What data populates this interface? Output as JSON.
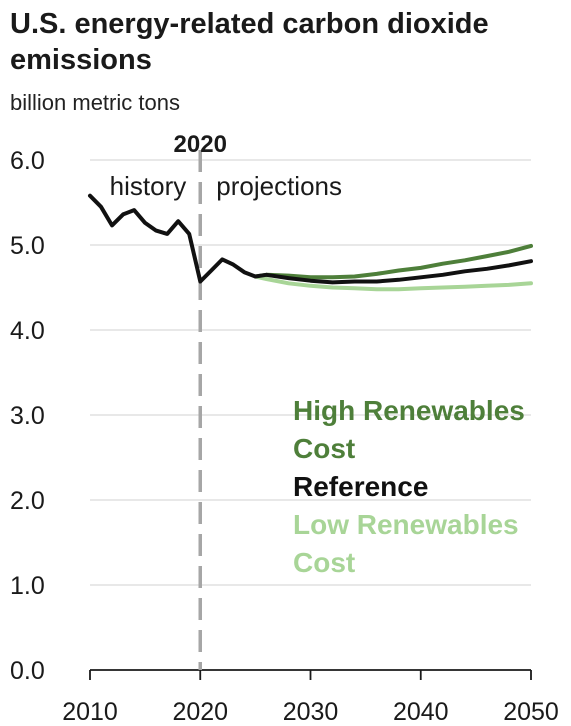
{
  "chart_data": {
    "type": "line",
    "title": "U.S. energy-related carbon dioxide emissions",
    "subtitle": "billion metric tons",
    "xlim": [
      2010,
      2050
    ],
    "ylim": [
      0,
      6
    ],
    "x_ticks": [
      "2010",
      "2020",
      "2030",
      "2040",
      "2050"
    ],
    "y_ticks": [
      "0.0",
      "1.0",
      "2.0",
      "3.0",
      "4.0",
      "5.0",
      "6.0"
    ],
    "grid": true,
    "vline": {
      "x": 2020,
      "label": "2020",
      "left_label": "history",
      "right_label": "projections"
    },
    "series": [
      {
        "name": "High Renewables Cost",
        "color": "#4e7f3a",
        "x": [
          2025,
          2026,
          2028,
          2030,
          2032,
          2034,
          2036,
          2038,
          2040,
          2042,
          2044,
          2046,
          2048,
          2050
        ],
        "y": [
          4.63,
          4.65,
          4.64,
          4.62,
          4.62,
          4.63,
          4.66,
          4.7,
          4.73,
          4.78,
          4.82,
          4.87,
          4.92,
          4.99
        ]
      },
      {
        "name": "Reference",
        "color": "#111111",
        "x": [
          2010,
          2011,
          2012,
          2013,
          2014,
          2015,
          2016,
          2017,
          2018,
          2019,
          2020,
          2021,
          2022,
          2023,
          2024,
          2025,
          2026,
          2028,
          2030,
          2032,
          2034,
          2036,
          2038,
          2040,
          2042,
          2044,
          2046,
          2048,
          2050
        ],
        "y": [
          5.58,
          5.45,
          5.23,
          5.36,
          5.41,
          5.26,
          5.17,
          5.13,
          5.28,
          5.13,
          4.57,
          4.7,
          4.83,
          4.77,
          4.68,
          4.63,
          4.65,
          4.61,
          4.58,
          4.56,
          4.57,
          4.57,
          4.59,
          4.62,
          4.65,
          4.69,
          4.72,
          4.76,
          4.81
        ]
      },
      {
        "name": "Low Renewables Cost",
        "color": "#a8d597",
        "x": [
          2025,
          2026,
          2028,
          2030,
          2032,
          2034,
          2036,
          2038,
          2040,
          2042,
          2044,
          2046,
          2048,
          2050
        ],
        "y": [
          4.63,
          4.6,
          4.55,
          4.52,
          4.5,
          4.49,
          4.48,
          4.48,
          4.49,
          4.5,
          4.51,
          4.52,
          4.53,
          4.55
        ]
      }
    ],
    "legend": [
      {
        "lines": [
          "High Renewables",
          "Cost"
        ],
        "color": "#4e7f3a"
      },
      {
        "lines": [
          "Reference"
        ],
        "color": "#111111"
      },
      {
        "lines": [
          "Low Renewables",
          "Cost"
        ],
        "color": "#a8d597"
      }
    ]
  }
}
